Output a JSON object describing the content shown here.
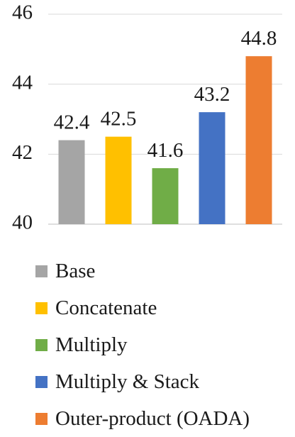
{
  "chart_data": {
    "type": "bar",
    "title": "",
    "xlabel": "",
    "ylabel": "",
    "categories": [
      "Base",
      "Concatenate",
      "Multiply",
      "Multiply & Stack",
      "Outer-product (OADA)"
    ],
    "values": [
      42.4,
      42.5,
      41.6,
      43.2,
      44.8
    ],
    "value_labels": [
      "42.4",
      "42.5",
      "41.6",
      "43.2",
      "44.8"
    ],
    "colors": [
      "#a5a5a5",
      "#ffc000",
      "#70ad47",
      "#4472c4",
      "#ed7d31"
    ],
    "ylim": [
      40,
      46
    ],
    "yticks": [
      40,
      42,
      44,
      46
    ],
    "ytick_labels": [
      "40",
      "42",
      "44",
      "46"
    ],
    "grid": true,
    "legend_position": "bottom"
  }
}
